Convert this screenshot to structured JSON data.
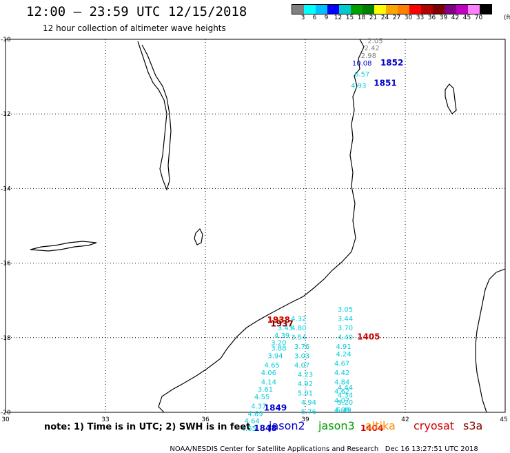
{
  "header": {
    "title": "12:00 – 23:59 UTC 12/15/2018",
    "subtitle": "12 hour collection of altimeter wave heights"
  },
  "color_scale": {
    "swatches": [
      "#808080",
      "#00ffff",
      "#00bfff",
      "#0000ff",
      "#00cccc",
      "#00a000",
      "#008000",
      "#ffff00",
      "#ffa500",
      "#ff8000",
      "#ff0000",
      "#b00000",
      "#800000",
      "#800080",
      "#c000c0",
      "#ff80ff",
      "#000000"
    ],
    "labels": [
      "3",
      "6",
      "9",
      "12",
      "15",
      "18",
      "21",
      "24",
      "27",
      "30",
      "33",
      "36",
      "39",
      "42",
      "45",
      "70"
    ],
    "unit": "(ft)"
  },
  "axes": {
    "lon_labels": [
      {
        "text": "30",
        "lon": 30
      },
      {
        "text": "33",
        "lon": 33
      },
      {
        "text": "36",
        "lon": 36
      },
      {
        "text": "39",
        "lon": 39
      },
      {
        "text": "42",
        "lon": 42
      },
      {
        "text": "45",
        "lon": 45
      }
    ],
    "lat_labels": [
      {
        "text": "-10",
        "lat": -10
      },
      {
        "text": "-12",
        "lat": -12
      },
      {
        "text": "-14",
        "lat": -14
      },
      {
        "text": "-16",
        "lat": -16
      },
      {
        "text": "-18",
        "lat": -18
      },
      {
        "text": "-20",
        "lat": -20
      }
    ],
    "lon_range": [
      30,
      45
    ],
    "lat_range": [
      -20,
      -10
    ]
  },
  "tracks": [
    {
      "color": "#808080",
      "points": [
        {
          "v": "2.05",
          "lon": 41.1,
          "lat": -10.1
        },
        {
          "v": "2.42",
          "lon": 41.0,
          "lat": -10.3
        },
        {
          "v": "2.98",
          "lon": 40.9,
          "lat": -10.5
        }
      ]
    },
    {
      "color": "#0000cc",
      "points": [
        {
          "v": "10.08",
          "lon": 40.7,
          "lat": -10.7
        }
      ]
    },
    {
      "color": "#00ccdd",
      "points": [
        {
          "v": "6.57",
          "lon": 40.7,
          "lat": -11.0
        },
        {
          "v": "4.93",
          "lon": 40.6,
          "lat": -11.3
        }
      ]
    },
    {
      "color": "#00ccdd",
      "points": [
        {
          "v": "3.05",
          "lon": 40.2,
          "lat": -17.3
        },
        {
          "v": "3.44",
          "lon": 40.2,
          "lat": -17.55
        },
        {
          "v": "3.70",
          "lon": 40.2,
          "lat": -17.8
        },
        {
          "v": "4.40",
          "lon": 40.2,
          "lat": -18.05
        },
        {
          "v": "4.91",
          "lon": 40.15,
          "lat": -18.3
        },
        {
          "v": "4.24",
          "lon": 40.15,
          "lat": -18.5
        },
        {
          "v": "4.67",
          "lon": 40.1,
          "lat": -18.75
        },
        {
          "v": "4.42",
          "lon": 40.1,
          "lat": -19.0
        },
        {
          "v": "4.84",
          "lon": 40.1,
          "lat": -19.25
        },
        {
          "v": "4.62",
          "lon": 40.1,
          "lat": -19.5
        },
        {
          "v": "4.07",
          "lon": 40.1,
          "lat": -19.75
        },
        {
          "v": "4.09",
          "lon": 40.1,
          "lat": -20.0
        }
      ]
    },
    {
      "color": "#00ccdd",
      "points": [
        {
          "v": "4.44",
          "lon": 40.2,
          "lat": -19.4
        },
        {
          "v": "4.34",
          "lon": 40.2,
          "lat": -19.6
        },
        {
          "v": "5.20",
          "lon": 40.2,
          "lat": -19.8
        },
        {
          "v": "6.49",
          "lon": 40.15,
          "lat": -20.0
        }
      ]
    }
  ],
  "cyan_track_west": [
    {
      "v": "3.43",
      "lon": 38.4,
      "lat": -17.8
    },
    {
      "v": "4.39",
      "lon": 38.3,
      "lat": -18.0
    },
    {
      "v": "3.20",
      "lon": 38.2,
      "lat": -18.2
    },
    {
      "v": "3.88",
      "lon": 38.2,
      "lat": -18.35
    },
    {
      "v": "3.94",
      "lon": 38.1,
      "lat": -18.55
    },
    {
      "v": "4.65",
      "lon": 38.0,
      "lat": -18.8
    },
    {
      "v": "4.06",
      "lon": 37.9,
      "lat": -19.0
    },
    {
      "v": "4.14",
      "lon": 37.9,
      "lat": -19.25
    },
    {
      "v": "3.61",
      "lon": 37.8,
      "lat": -19.45
    },
    {
      "v": "4.55",
      "lon": 37.7,
      "lat": -19.65
    },
    {
      "v": "4.37",
      "lon": 37.6,
      "lat": -19.9
    },
    {
      "v": "4.69",
      "lon": 37.5,
      "lat": -20.1
    },
    {
      "v": "4.64",
      "lon": 37.4,
      "lat": -20.3
    },
    {
      "v": "4.65",
      "lon": 37.3,
      "lat": -20.5
    }
  ],
  "cyan_track_mid": [
    {
      "v": "4.32",
      "lon": 38.8,
      "lat": -17.55
    },
    {
      "v": "4.80",
      "lon": 38.8,
      "lat": -17.8
    },
    {
      "v": "3.54",
      "lon": 38.8,
      "lat": -18.05
    },
    {
      "v": "3.76",
      "lon": 38.9,
      "lat": -18.3
    },
    {
      "v": "3.03",
      "lon": 38.9,
      "lat": -18.55
    },
    {
      "v": "4.07",
      "lon": 38.9,
      "lat": -18.8
    },
    {
      "v": "4.23",
      "lon": 39.0,
      "lat": -19.05
    },
    {
      "v": "4.92",
      "lon": 39.0,
      "lat": -19.3
    },
    {
      "v": "5.01",
      "lon": 39.0,
      "lat": -19.55
    },
    {
      "v": "4.94",
      "lon": 39.1,
      "lat": -19.8
    },
    {
      "v": "5.76",
      "lon": 39.1,
      "lat": -20.05
    }
  ],
  "track_labels": [
    {
      "text": "1852",
      "color": "#0000cc",
      "lon": 41.6,
      "lat": -10.7,
      "bold": true
    },
    {
      "text": "1851",
      "color": "#0000cc",
      "lon": 41.4,
      "lat": -11.25,
      "bold": true
    },
    {
      "text": "1938",
      "color": "#cc0000",
      "lon": 38.2,
      "lat": -17.6,
      "bold": true
    },
    {
      "text": "1937",
      "color": "#800000",
      "lon": 38.3,
      "lat": -17.7,
      "bold": true
    },
    {
      "text": "1405",
      "color": "#cc0000",
      "lon": 40.9,
      "lat": -18.05,
      "bold": true
    },
    {
      "text": "1849",
      "color": "#0000cc",
      "lon": 38.1,
      "lat": -19.95,
      "bold": true
    },
    {
      "text": "1848",
      "color": "#0000cc",
      "lon": 37.8,
      "lat": -20.5,
      "bold": true
    },
    {
      "text": "1404",
      "color": "#cc0000",
      "lon": 41.0,
      "lat": -20.5,
      "bold": true
    }
  ],
  "altika_labels": [
    {
      "text": "3.09",
      "color": "#e0c040",
      "lon": 38.1,
      "lat": -17.6
    }
  ],
  "footer": {
    "note": "note: 1) Time is in UTC; 2) SWH is in feet",
    "satellites": [
      {
        "name": "jason2",
        "color": "#0000cc"
      },
      {
        "name": "jason3",
        "color": "#009900"
      },
      {
        "name": "altika",
        "color": "#ff8800"
      },
      {
        "name": "cryosat",
        "color": "#cc0000"
      },
      {
        "name": "s3a",
        "color": "#880000"
      }
    ],
    "credit": "NOAA/NESDIS Center for Satellite Applications and Research",
    "timestamp": "Dec 16 13:27:51 UTC 2018"
  }
}
